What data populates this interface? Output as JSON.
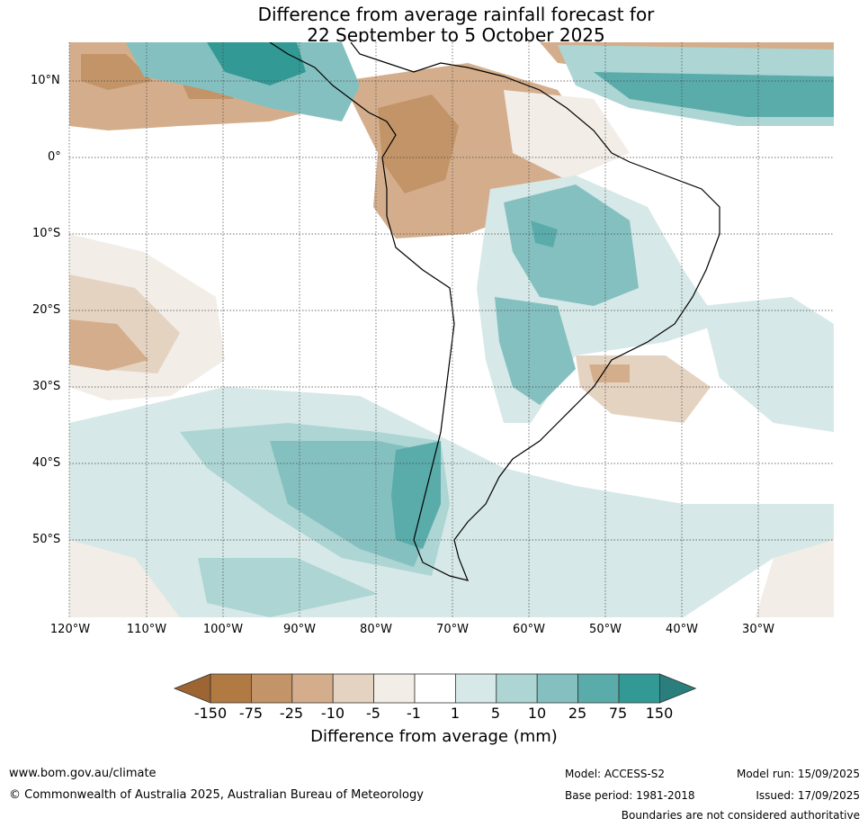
{
  "title": {
    "line1": "Difference from average rainfall forecast for",
    "line2": "22 September to 5 October 2025"
  },
  "latitude_labels": [
    "10°N",
    "0°",
    "10°S",
    "20°S",
    "30°S",
    "40°S",
    "50°S"
  ],
  "longitude_labels": [
    "120°W",
    "110°W",
    "100°W",
    "90°W",
    "80°W",
    "70°W",
    "60°W",
    "50°W",
    "40°W",
    "30°W"
  ],
  "colorbar": {
    "tick_labels": [
      "-150",
      "-75",
      "-25",
      "-10",
      "-5",
      "-1",
      "1",
      "5",
      "10",
      "25",
      "75",
      "150"
    ],
    "colors": [
      "#9c6532",
      "#b07a42",
      "#c29467",
      "#d4ae8c",
      "#e5d3c2",
      "#f2ede7",
      "#ffffff",
      "#d6e8e7",
      "#acd5d4",
      "#85c0c0",
      "#5aacab",
      "#339995",
      "#2a7f7c"
    ],
    "label": "Difference from average (mm)"
  },
  "footer": {
    "url": "www.bom.gov.au/climate",
    "copyright": "© Commonwealth of Australia 2025, Australian Bureau of Meteorology",
    "model": "Model: ACCESS-S2",
    "base_period": "Base period: 1981-2018",
    "model_run": "Model run: 15/09/2025",
    "issued": "Issued: 17/09/2025",
    "boundaries_note": "Boundaries are not considered authoritative"
  }
}
